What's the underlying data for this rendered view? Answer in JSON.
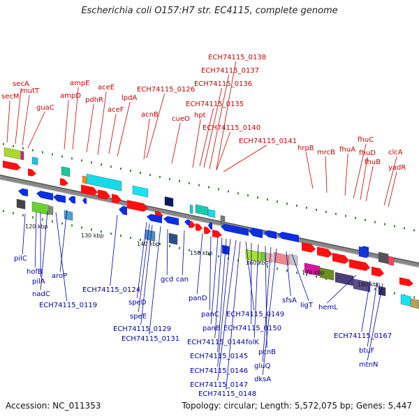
{
  "title": "Escherichia coli O157:H7 str. EC4115, complete genome",
  "footer": {
    "accession": "Accession: NC_011353",
    "summary": "Topology: circular; Length: 5,572,075 bp; Genes: 5,447"
  },
  "colors": {
    "top_label": "#cc0000",
    "bottom_label": "#0000aa",
    "backbone": "#888888",
    "tick_dot": "#2e8b2e"
  },
  "top_genes": [
    "secM",
    "secA",
    "mutT",
    "guaC",
    "ampD",
    "ampE",
    "pdhR",
    "aceE",
    "aceF",
    "lpdA",
    "ECH74115_0126",
    "acnB",
    "cueO",
    "hpt",
    "ECH74115_0135",
    "ECH74115_0136",
    "ECH74115_0137",
    "ECH74115_0138",
    "ECH74115_0140",
    "ECH74115_0141",
    "hrpB",
    "mrcB",
    "fhuA",
    "fhuC",
    "fhuD",
    "fhuB",
    "clcA",
    "yadR"
  ],
  "bottom_genes": [
    "pilC",
    "hofB",
    "pilA",
    "nadC",
    "aroP",
    "ECH74115_0119",
    "ECH74115_0124",
    "speD",
    "speE",
    "ECH74115_0129",
    "ECH74115_0131",
    "gcd",
    "can",
    "panD",
    "panC",
    "panB",
    "ECH74115_0144",
    "ECH74115_0145",
    "ECH74115_0146",
    "ECH74115_0147",
    "ECH74115_0148",
    "ECH74115_0149",
    "ECH74115_0150",
    "folK",
    "pcnB",
    "gluQ",
    "dksA",
    "sfsA",
    "ligT",
    "hemL",
    "ECH74115_0167",
    "btuF",
    "mtnN"
  ],
  "ticks": [
    "120 kbp",
    "130 kbp",
    "140 kbp",
    "150 kbp",
    "160 kbp",
    "170 kbp",
    "180 kbp"
  ]
}
